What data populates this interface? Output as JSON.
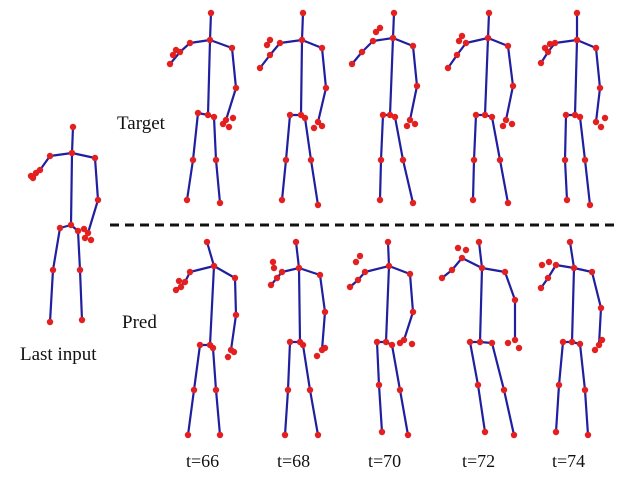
{
  "labels": {
    "target": "Target",
    "pred": "Pred",
    "last_input": "Last input"
  },
  "timesteps": [
    "t=66",
    "t=68",
    "t=70",
    "t=72",
    "t=74"
  ],
  "colors": {
    "bone": "#1f1fa0",
    "joint": "#e41f1f",
    "divider": "#111111",
    "text": "#111111"
  }
}
